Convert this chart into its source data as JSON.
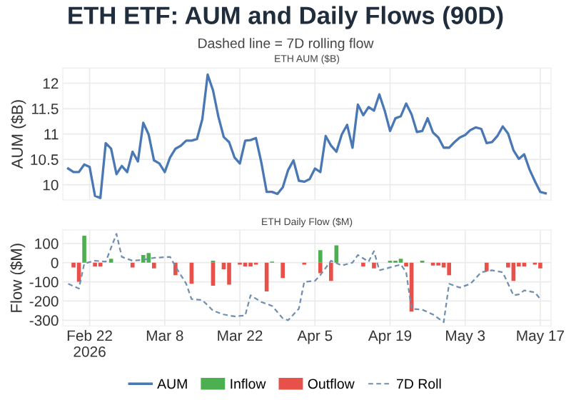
{
  "chart_data": [
    {
      "type": "line",
      "title": "ETH ETF: AUM and Daily Flows (90D)",
      "subtitle": "Dashed line = 7D rolling flow",
      "annotations": [
        "ETH AUM ($B)"
      ],
      "ylabel": "AUM ($B)",
      "ylim": [
        9.7,
        12.3
      ],
      "yticks": [
        10,
        10.5,
        11,
        11.5,
        12
      ],
      "xlim": [
        "2026-02-17",
        "2026-05-19"
      ],
      "xticks": [
        "2026-02-22",
        "2026-03-08",
        "2026-03-22",
        "2026-04-05",
        "2026-04-19",
        "2026-05-03",
        "2026-05-17"
      ],
      "tick_labels": "y",
      "grid": true,
      "series": [
        {
          "name": "AUM",
          "color": "#4a78b5",
          "x": [
            "2026-02-18",
            "2026-02-19",
            "2026-02-20",
            "2026-02-21",
            "2026-02-22",
            "2026-02-23",
            "2026-02-24",
            "2026-02-25",
            "2026-02-26",
            "2026-02-27",
            "2026-02-28",
            "2026-03-01",
            "2026-03-02",
            "2026-03-03",
            "2026-03-04",
            "2026-03-05",
            "2026-03-06",
            "2026-03-07",
            "2026-03-08",
            "2026-03-09",
            "2026-03-10",
            "2026-03-11",
            "2026-03-12",
            "2026-03-13",
            "2026-03-14",
            "2026-03-15",
            "2026-03-16",
            "2026-03-17",
            "2026-03-18",
            "2026-03-19",
            "2026-03-20",
            "2026-03-21",
            "2026-03-22",
            "2026-03-23",
            "2026-03-24",
            "2026-03-25",
            "2026-03-26",
            "2026-03-27",
            "2026-03-28",
            "2026-03-29",
            "2026-03-30",
            "2026-03-31",
            "2026-04-01",
            "2026-04-02",
            "2026-04-03",
            "2026-04-04",
            "2026-04-05",
            "2026-04-06",
            "2026-04-07",
            "2026-04-08",
            "2026-04-09",
            "2026-04-10",
            "2026-04-11",
            "2026-04-12",
            "2026-04-13",
            "2026-04-14",
            "2026-04-15",
            "2026-04-16",
            "2026-04-17",
            "2026-04-18",
            "2026-04-19",
            "2026-04-20",
            "2026-04-21",
            "2026-04-22",
            "2026-04-23",
            "2026-04-24",
            "2026-04-25",
            "2026-04-26",
            "2026-04-27",
            "2026-04-28",
            "2026-04-29",
            "2026-04-30",
            "2026-05-01",
            "2026-05-02",
            "2026-05-03",
            "2026-05-04",
            "2026-05-05",
            "2026-05-06",
            "2026-05-07",
            "2026-05-08",
            "2026-05-09",
            "2026-05-10",
            "2026-05-11",
            "2026-05-12",
            "2026-05-13",
            "2026-05-14",
            "2026-05-15",
            "2026-05-16",
            "2026-05-17",
            "2026-05-18"
          ],
          "values": [
            10.32,
            10.25,
            10.25,
            10.4,
            10.35,
            9.78,
            9.74,
            10.82,
            10.71,
            10.21,
            10.37,
            10.25,
            10.65,
            10.46,
            11.22,
            10.99,
            10.48,
            10.42,
            10.25,
            10.54,
            10.71,
            10.77,
            10.87,
            10.87,
            10.9,
            11.29,
            12.17,
            11.86,
            11.34,
            10.94,
            10.84,
            10.54,
            10.42,
            10.87,
            10.88,
            10.92,
            10.44,
            9.86,
            9.86,
            9.82,
            9.95,
            10.29,
            10.48,
            10.08,
            10.06,
            10.11,
            10.32,
            10.25,
            10.96,
            10.77,
            10.65,
            10.99,
            11.18,
            10.73,
            11.58,
            11.37,
            11.53,
            11.46,
            11.78,
            11.46,
            11.06,
            11.31,
            11.35,
            11.6,
            11.39,
            11.04,
            11.06,
            11.31,
            11.03,
            10.93,
            10.73,
            10.73,
            10.84,
            10.93,
            10.98,
            11.08,
            11.13,
            11.1,
            10.82,
            10.84,
            10.96,
            11.15,
            11.01,
            10.68,
            10.51,
            10.6,
            10.3,
            10.07,
            9.86,
            9.83
          ]
        }
      ]
    },
    {
      "type": "bar",
      "title": "ETH Daily Flow ($M)",
      "ylabel": "Flow ($M)",
      "ylim": [
        -330,
        170
      ],
      "yticks": [
        -300,
        -200,
        -100,
        0,
        100
      ],
      "xlim": [
        "2026-02-17",
        "2026-05-19"
      ],
      "xticks": [
        {
          "value": "2026-02-22",
          "label": "Feb 22\n2026"
        },
        {
          "value": "2026-03-08",
          "label": "Mar 8"
        },
        {
          "value": "2026-03-22",
          "label": "Mar 22"
        },
        {
          "value": "2026-04-05",
          "label": "Apr 5"
        },
        {
          "value": "2026-04-19",
          "label": "Apr 19"
        },
        {
          "value": "2026-05-03",
          "label": "May 3"
        },
        {
          "value": "2026-05-17",
          "label": "May 17"
        }
      ],
      "grid": true,
      "legend": "bottom",
      "series": [
        {
          "name": "Inflow",
          "color": "#4caf50",
          "x": [
            "2026-02-21",
            "2026-02-22",
            "2026-02-26",
            "2026-03-04",
            "2026-03-05",
            "2026-03-17",
            "2026-03-28",
            "2026-04-06",
            "2026-04-09",
            "2026-04-19",
            "2026-04-20",
            "2026-04-21",
            "2026-04-25"
          ],
          "values": [
            140,
            null,
            20,
            40,
            50,
            10,
            5,
            65,
            90,
            10,
            10,
            20,
            10
          ]
        },
        {
          "name": "Outflow",
          "color": "#e8514a",
          "x": [
            "2026-02-19",
            "2026-02-20",
            "2026-02-23",
            "2026-02-24",
            "2026-03-02",
            "2026-03-06",
            "2026-03-10",
            "2026-03-13",
            "2026-03-17",
            "2026-03-19",
            "2026-03-20",
            "2026-03-22",
            "2026-03-23",
            "2026-03-24",
            "2026-03-25",
            "2026-03-27",
            "2026-03-30",
            "2026-04-03",
            "2026-04-06",
            "2026-04-08",
            "2026-04-14",
            "2026-04-16",
            "2026-04-22",
            "2026-04-23",
            "2026-04-27",
            "2026-04-28",
            "2026-04-29",
            "2026-04-30",
            "2026-05-07",
            "2026-05-11",
            "2026-05-12",
            "2026-05-13",
            "2026-05-14",
            "2026-05-16",
            "2026-05-17"
          ],
          "values": [
            -25,
            -100,
            -20,
            -20,
            -25,
            -30,
            -65,
            -110,
            -120,
            -35,
            -115,
            -10,
            -20,
            -20,
            -10,
            -150,
            -80,
            -10,
            -55,
            -95,
            -20,
            -30,
            -20,
            -255,
            -15,
            -15,
            -25,
            -65,
            -45,
            -25,
            -95,
            -20,
            -20,
            -10,
            -30
          ]
        },
        {
          "name": "7D Roll",
          "type": "line",
          "color": "#6f8fb0",
          "line_style": "dashed",
          "x": [
            "2026-02-18",
            "2026-02-20",
            "2026-02-21",
            "2026-02-23",
            "2026-02-25",
            "2026-02-27",
            "2026-02-28",
            "2026-03-02",
            "2026-03-04",
            "2026-03-06",
            "2026-03-09",
            "2026-03-10",
            "2026-03-12",
            "2026-03-13",
            "2026-03-15",
            "2026-03-17",
            "2026-03-19",
            "2026-03-21",
            "2026-03-23",
            "2026-03-24",
            "2026-03-26",
            "2026-03-28",
            "2026-03-30",
            "2026-03-31",
            "2026-04-02",
            "2026-04-03",
            "2026-04-05",
            "2026-04-06",
            "2026-04-08",
            "2026-04-10",
            "2026-04-12",
            "2026-04-13",
            "2026-04-15",
            "2026-04-16",
            "2026-04-17",
            "2026-04-19",
            "2026-04-21",
            "2026-04-22",
            "2026-04-23",
            "2026-04-25",
            "2026-04-27",
            "2026-04-29",
            "2026-04-30",
            "2026-05-02",
            "2026-05-04",
            "2026-05-06",
            "2026-05-08",
            "2026-05-10",
            "2026-05-12",
            "2026-05-13",
            "2026-05-14",
            "2026-05-16",
            "2026-05-17"
          ],
          "values": [
            -110,
            -135,
            -5,
            10,
            5,
            150,
            30,
            10,
            15,
            25,
            30,
            -20,
            -110,
            -190,
            -195,
            -250,
            -270,
            -280,
            -275,
            -170,
            -205,
            -225,
            -290,
            -300,
            -240,
            -100,
            -95,
            -65,
            10,
            -15,
            0,
            40,
            5,
            60,
            -40,
            -25,
            -10,
            -50,
            -240,
            -245,
            -270,
            -310,
            -110,
            -130,
            -110,
            -50,
            -40,
            -50,
            -170,
            -165,
            -145,
            -155,
            -190
          ]
        }
      ]
    }
  ]
}
